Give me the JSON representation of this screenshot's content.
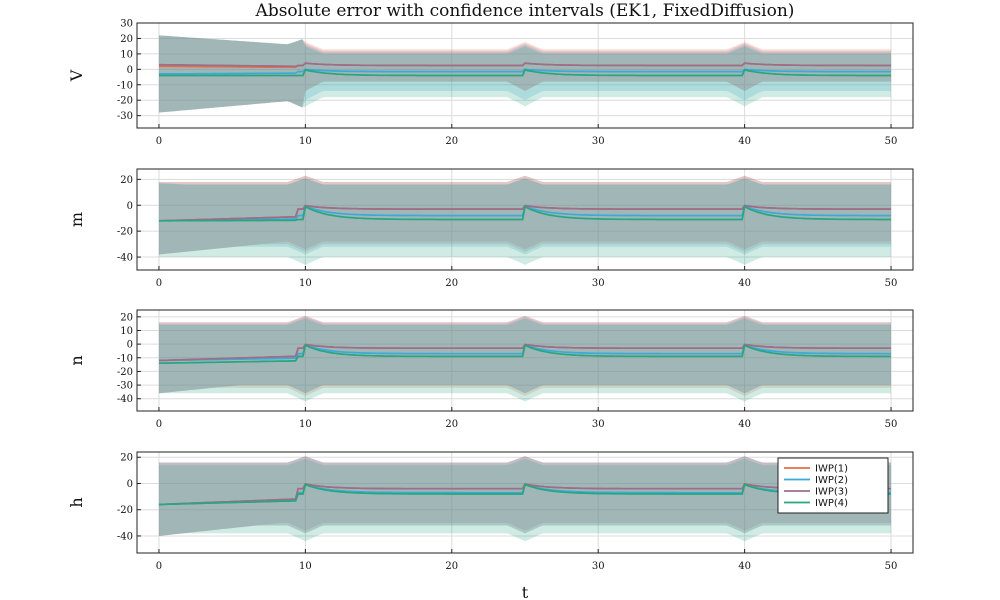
{
  "title": "Absolute error with confidence intervals (EK1, FixedDiffusion)",
  "xlabel": "t",
  "chart_data": {
    "type": "line",
    "title": "Absolute error with confidence intervals (EK1, FixedDiffusion)",
    "xlabel": "t",
    "x_ticks": [
      0,
      10,
      20,
      30,
      40,
      50
    ],
    "xlim": [
      -1.5,
      51.5
    ],
    "grid": true,
    "legend_position": "right, inside bottom panel",
    "series_names": [
      "IWP(1)",
      "IWP(2)",
      "IWP(3)",
      "IWP(4)"
    ],
    "series_colors": [
      "#e26f46",
      "#3da9d8",
      "#9b6e8b",
      "#27a680"
    ],
    "panels": [
      {
        "ylabel": "V",
        "ylim": [
          -38,
          30
        ],
        "y_ticks": [
          -30,
          -20,
          -10,
          0,
          10,
          20,
          30
        ],
        "spikes": [
          10,
          25,
          40
        ],
        "series": [
          {
            "name": "IWP(1)",
            "base": 2.5,
            "t0": 2,
            "band": [
              -8,
              13
            ]
          },
          {
            "name": "IWP(2)",
            "base": -1.5,
            "t0": -3,
            "band": [
              -14,
              11
            ]
          },
          {
            "name": "IWP(3)",
            "base": 2.5,
            "t0": 3,
            "band": [
              -8,
              12
            ]
          },
          {
            "name": "IWP(4)",
            "base": -4,
            "t0": -4,
            "band": [
              -18,
              10
            ]
          }
        ],
        "early_band": [
          -28,
          22
        ]
      },
      {
        "ylabel": "m",
        "ylim": [
          -50,
          28
        ],
        "y_ticks": [
          -40,
          -20,
          0,
          20
        ],
        "spikes": [
          10,
          25,
          40
        ],
        "series": [
          {
            "name": "IWP(1)",
            "base": -3,
            "t0": -12,
            "band": [
              -30,
              18
            ]
          },
          {
            "name": "IWP(2)",
            "base": -8,
            "t0": -12,
            "band": [
              -32,
              16
            ]
          },
          {
            "name": "IWP(3)",
            "base": -3,
            "t0": -12,
            "band": [
              -28,
              18
            ]
          },
          {
            "name": "IWP(4)",
            "base": -11,
            "t0": -12,
            "band": [
              -40,
              16
            ]
          }
        ],
        "early_band": [
          -38,
          17
        ]
      },
      {
        "ylabel": "n",
        "ylim": [
          -49,
          25
        ],
        "y_ticks": [
          -40,
          -30,
          -20,
          -10,
          0,
          10,
          20
        ],
        "spikes": [
          10,
          25,
          40
        ],
        "series": [
          {
            "name": "IWP(1)",
            "base": -3,
            "t0": -12,
            "band": [
              -32,
              16
            ]
          },
          {
            "name": "IWP(2)",
            "base": -7,
            "t0": -12,
            "band": [
              -30,
              15
            ]
          },
          {
            "name": "IWP(3)",
            "base": -3,
            "t0": -12,
            "band": [
              -30,
              16
            ]
          },
          {
            "name": "IWP(4)",
            "base": -9,
            "t0": -14,
            "band": [
              -36,
              14
            ]
          }
        ],
        "early_band": [
          -36,
          14
        ]
      },
      {
        "ylabel": "h",
        "ylim": [
          -53,
          24
        ],
        "y_ticks": [
          -40,
          -20,
          0,
          20
        ],
        "spikes": [
          10,
          25,
          40
        ],
        "series": [
          {
            "name": "IWP(1)",
            "base": -4,
            "t0": -16,
            "band": [
              -32,
              16
            ]
          },
          {
            "name": "IWP(2)",
            "base": -7,
            "t0": -16,
            "band": [
              -32,
              16
            ]
          },
          {
            "name": "IWP(3)",
            "base": -4,
            "t0": -16,
            "band": [
              -30,
              16
            ]
          },
          {
            "name": "IWP(4)",
            "base": -8,
            "t0": -16,
            "band": [
              -38,
              14
            ]
          }
        ],
        "early_band": [
          -40,
          12
        ]
      }
    ]
  }
}
